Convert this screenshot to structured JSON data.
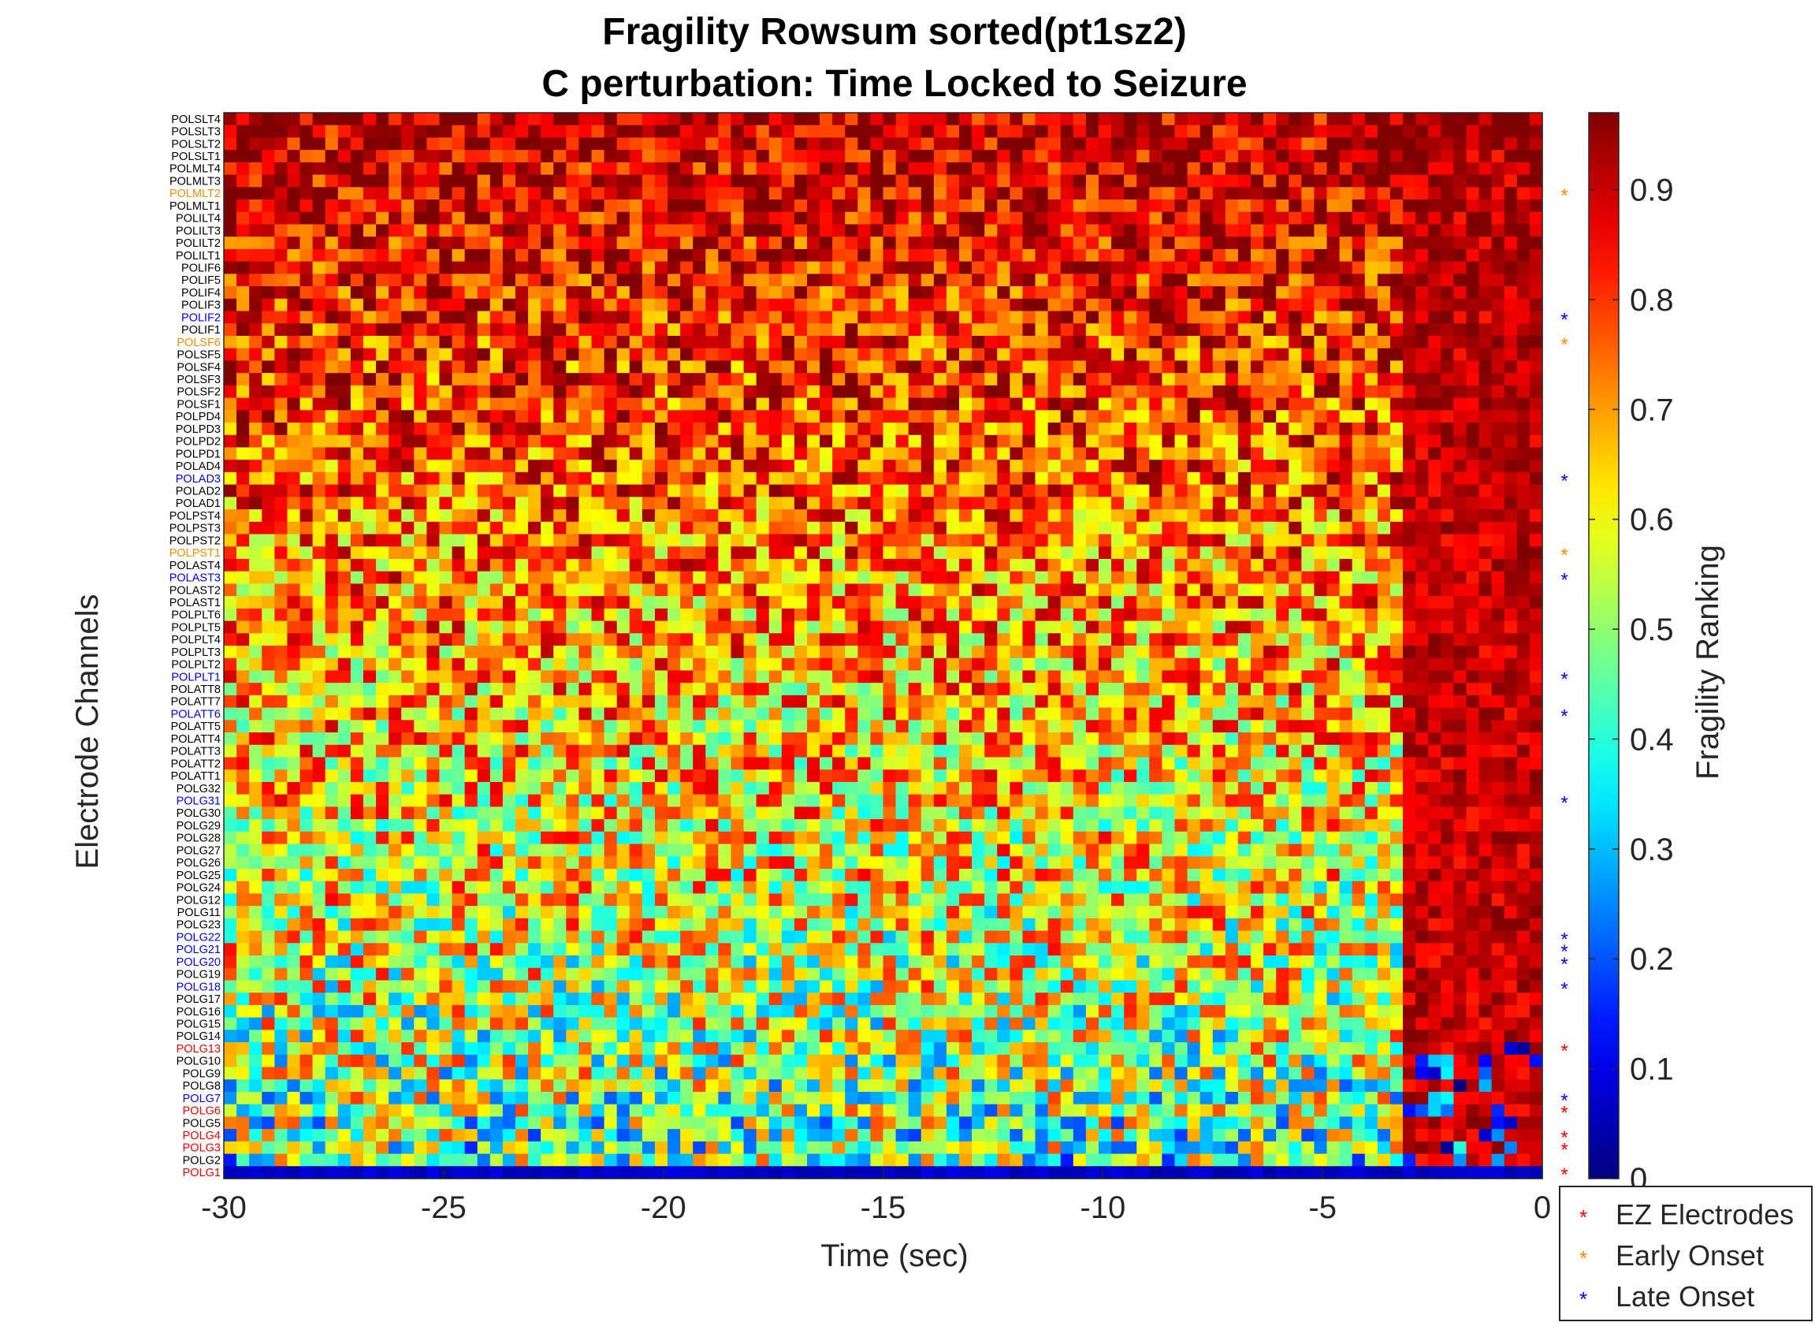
{
  "chart_data": {
    "type": "heatmap",
    "title": "Fragility Rowsum sorted(pt1sz2)",
    "subtitle": "C perturbation:  Time Locked to Seizure",
    "xlabel": "Time (sec)",
    "ylabel": "Electrode Channels",
    "colorbar_label": "Fragility Ranking",
    "colormap": "jet",
    "x_ticks": [
      "-30",
      "-25",
      "-20",
      "-15",
      "-10",
      "-5",
      "0"
    ],
    "x_range": [
      -30,
      0
    ],
    "colorbar_ticks": [
      "0",
      "0.1",
      "0.2",
      "0.3",
      "0.4",
      "0.5",
      "0.6",
      "0.7",
      "0.8",
      "0.9"
    ],
    "clim": [
      0,
      0.97
    ],
    "channels": [
      "POLSLT4",
      "POLSLT3",
      "POLSLT2",
      "POLSLT1",
      "POLMLT4",
      "POLMLT3",
      "POLMLT2",
      "POLMLT1",
      "POLILT4",
      "POLILT3",
      "POLILT2",
      "POLILT1",
      "POLIF6",
      "POLIF5",
      "POLIF4",
      "POLIF3",
      "POLIF2",
      "POLIF1",
      "POLSF6",
      "POLSF5",
      "POLSF4",
      "POLSF3",
      "POLSF2",
      "POLSF1",
      "POLPD4",
      "POLPD3",
      "POLPD2",
      "POLPD1",
      "POLAD4",
      "POLAD3",
      "POLAD2",
      "POLAD1",
      "POLPST4",
      "POLPST3",
      "POLPST2",
      "POLPST1",
      "POLAST4",
      "POLAST3",
      "POLAST2",
      "POLAST1",
      "POLPLT6",
      "POLPLT5",
      "POLPLT4",
      "POLPLT3",
      "POLPLT2",
      "POLPLT1",
      "POLATT8",
      "POLATT7",
      "POLATT6",
      "POLATT5",
      "POLATT4",
      "POLATT3",
      "POLATT2",
      "POLATT1",
      "POLG32",
      "POLG31",
      "POLG30",
      "POLG29",
      "POLG28",
      "POLG27",
      "POLG26",
      "POLG25",
      "POLG24",
      "POLG12",
      "POLG11",
      "POLG23",
      "POLG22",
      "POLG21",
      "POLG20",
      "POLG19",
      "POLG18",
      "POLG17",
      "POLG16",
      "POLG15",
      "POLG14",
      "POLG13",
      "POLG10",
      "POLG9",
      "POLG8",
      "POLG7",
      "POLG6",
      "POLG5",
      "POLG4",
      "POLG3",
      "POLG2",
      "POLG1"
    ],
    "electrode_groups": {
      "ez": [
        "POLG13",
        "POLG6",
        "POLG4",
        "POLG3",
        "POLG1"
      ],
      "early_onset": [
        "POLMLT2",
        "POLSF6",
        "POLPST1"
      ],
      "late_onset": [
        "POLIF2",
        "POLAD3",
        "POLAST3",
        "POLPLT1",
        "POLATT6",
        "POLG31",
        "POLG22",
        "POLG21",
        "POLG20",
        "POLG18",
        "POLG7"
      ]
    },
    "colors": {
      "ez": "#ff0000",
      "early_onset": "#ff8c00",
      "late_onset": "#0000ff",
      "normal": "#000000"
    },
    "time_bins": 104,
    "row_mean_fragility": [
      0.9,
      0.9,
      0.89,
      0.89,
      0.88,
      0.88,
      0.88,
      0.87,
      0.86,
      0.86,
      0.85,
      0.85,
      0.84,
      0.84,
      0.83,
      0.83,
      0.82,
      0.82,
      0.81,
      0.81,
      0.8,
      0.8,
      0.8,
      0.79,
      0.79,
      0.78,
      0.78,
      0.77,
      0.77,
      0.76,
      0.76,
      0.75,
      0.74,
      0.74,
      0.73,
      0.73,
      0.72,
      0.72,
      0.71,
      0.71,
      0.7,
      0.7,
      0.69,
      0.69,
      0.68,
      0.68,
      0.67,
      0.67,
      0.66,
      0.66,
      0.65,
      0.65,
      0.64,
      0.64,
      0.63,
      0.63,
      0.62,
      0.62,
      0.61,
      0.61,
      0.6,
      0.6,
      0.59,
      0.59,
      0.58,
      0.58,
      0.57,
      0.57,
      0.56,
      0.56,
      0.55,
      0.55,
      0.54,
      0.54,
      0.53,
      0.53,
      0.52,
      0.51,
      0.5,
      0.5,
      0.49,
      0.48,
      0.47,
      0.46,
      0.45,
      0.05
    ],
    "legend": {
      "position": "bottom-right",
      "entries": [
        {
          "label": "EZ Electrodes",
          "color": "#ff0000",
          "marker": "*"
        },
        {
          "label": "Early Onset",
          "color": "#ff8c00",
          "marker": "*"
        },
        {
          "label": "Late Onset",
          "color": "#0000ff",
          "marker": "*"
        }
      ]
    },
    "grid": false
  }
}
